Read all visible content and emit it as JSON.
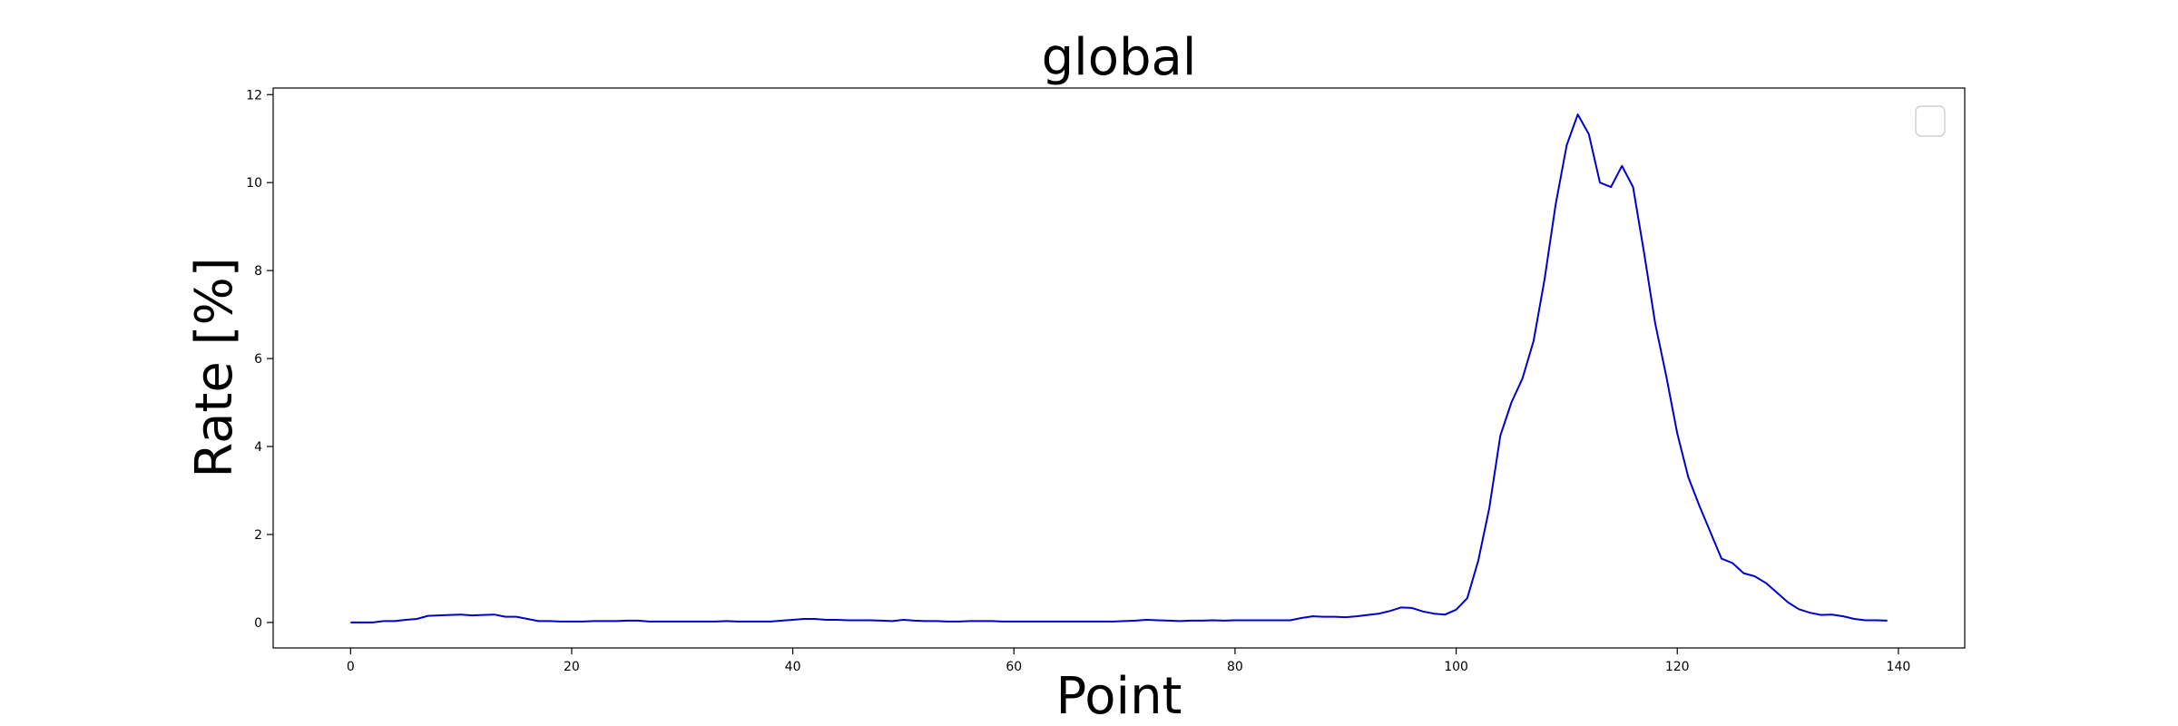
{
  "chart_data": {
    "type": "line",
    "title": "global",
    "xlabel": "Point",
    "ylabel": "Rate [%]",
    "xlim": [
      -7,
      146
    ],
    "ylim": [
      -0.58,
      12.15
    ],
    "xticks": [
      0,
      20,
      40,
      60,
      80,
      100,
      120,
      140
    ],
    "yticks": [
      0,
      2,
      4,
      6,
      8,
      10,
      12
    ],
    "grid": false,
    "legend": {
      "placement": "top-right",
      "entries": []
    },
    "series": [
      {
        "color": "#0000cc",
        "x": [
          0,
          1,
          2,
          3,
          4,
          5,
          6,
          7,
          8,
          9,
          10,
          11,
          12,
          13,
          14,
          15,
          16,
          17,
          18,
          19,
          20,
          21,
          22,
          23,
          24,
          25,
          26,
          27,
          28,
          29,
          30,
          31,
          32,
          33,
          34,
          35,
          36,
          37,
          38,
          39,
          40,
          41,
          42,
          43,
          44,
          45,
          46,
          47,
          48,
          49,
          50,
          51,
          52,
          53,
          54,
          55,
          56,
          57,
          58,
          59,
          60,
          61,
          62,
          63,
          64,
          65,
          66,
          67,
          68,
          69,
          70,
          71,
          72,
          73,
          74,
          75,
          76,
          77,
          78,
          79,
          80,
          81,
          82,
          83,
          84,
          85,
          86,
          87,
          88,
          89,
          90,
          91,
          92,
          93,
          94,
          95,
          96,
          97,
          98,
          99,
          100,
          101,
          102,
          103,
          104,
          105,
          106,
          107,
          108,
          109,
          110,
          111,
          112,
          113,
          114,
          115,
          116,
          117,
          118,
          119,
          120,
          121,
          122,
          123,
          124,
          125,
          126,
          127,
          128,
          129,
          130,
          131,
          132,
          133,
          134,
          135,
          136,
          137,
          138,
          139
        ],
        "y": [
          0.0,
          0.0,
          0.0,
          0.03,
          0.03,
          0.06,
          0.08,
          0.15,
          0.16,
          0.17,
          0.18,
          0.16,
          0.17,
          0.18,
          0.13,
          0.13,
          0.08,
          0.03,
          0.03,
          0.02,
          0.02,
          0.02,
          0.03,
          0.03,
          0.03,
          0.04,
          0.04,
          0.02,
          0.02,
          0.02,
          0.02,
          0.02,
          0.02,
          0.02,
          0.03,
          0.02,
          0.02,
          0.02,
          0.02,
          0.04,
          0.06,
          0.08,
          0.08,
          0.06,
          0.06,
          0.05,
          0.05,
          0.05,
          0.04,
          0.03,
          0.06,
          0.04,
          0.03,
          0.03,
          0.02,
          0.02,
          0.03,
          0.03,
          0.03,
          0.02,
          0.02,
          0.02,
          0.02,
          0.02,
          0.02,
          0.02,
          0.02,
          0.02,
          0.02,
          0.02,
          0.03,
          0.04,
          0.06,
          0.05,
          0.04,
          0.03,
          0.04,
          0.04,
          0.05,
          0.04,
          0.05,
          0.05,
          0.05,
          0.05,
          0.05,
          0.05,
          0.1,
          0.14,
          0.13,
          0.13,
          0.12,
          0.14,
          0.17,
          0.2,
          0.26,
          0.34,
          0.33,
          0.25,
          0.2,
          0.18,
          0.29,
          0.55,
          1.4,
          2.6,
          4.25,
          5.0,
          5.55,
          6.4,
          7.8,
          9.5,
          10.85,
          11.55,
          11.1,
          10.0,
          9.9,
          10.38,
          9.9,
          8.4,
          6.8,
          5.6,
          4.3,
          3.3,
          2.65,
          2.05,
          1.45,
          1.35,
          1.12,
          1.05,
          0.9,
          0.68,
          0.46,
          0.3,
          0.22,
          0.17,
          0.18,
          0.14,
          0.08,
          0.05,
          0.05,
          0.04
        ]
      }
    ]
  }
}
